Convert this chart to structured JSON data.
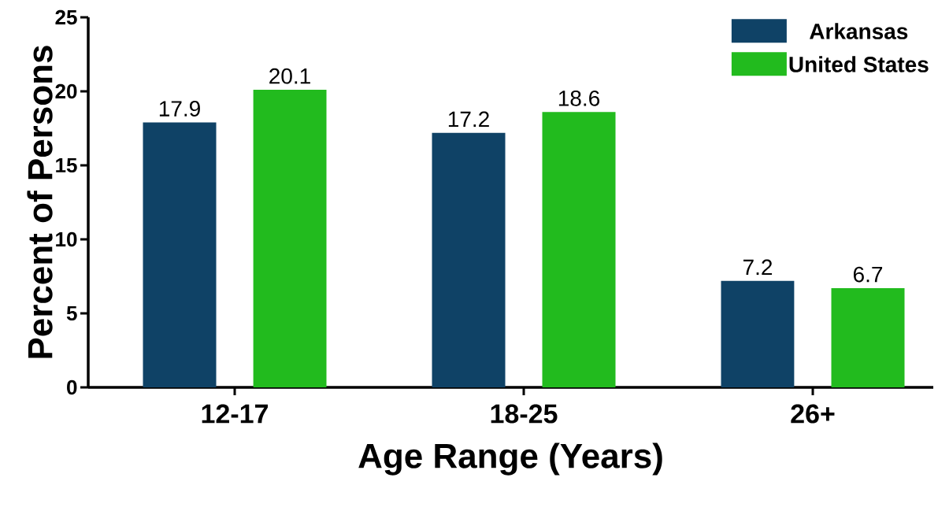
{
  "chart_data": {
    "type": "bar",
    "xlabel": "Age Range (Years)",
    "ylabel": "Percent of Persons",
    "categories": [
      "12-17",
      "18-25",
      "26+"
    ],
    "series": [
      {
        "name": "Arkansas",
        "color": "#0f4266",
        "values": [
          17.9,
          17.2,
          7.2
        ]
      },
      {
        "name": "United States",
        "color": "#22bb1e",
        "values": [
          20.1,
          18.6,
          6.7
        ]
      }
    ],
    "ylim": [
      0,
      25
    ],
    "yticks": [
      0,
      5,
      10,
      15,
      20,
      25
    ],
    "grid": false,
    "legend": "top right",
    "data_labels": true
  }
}
